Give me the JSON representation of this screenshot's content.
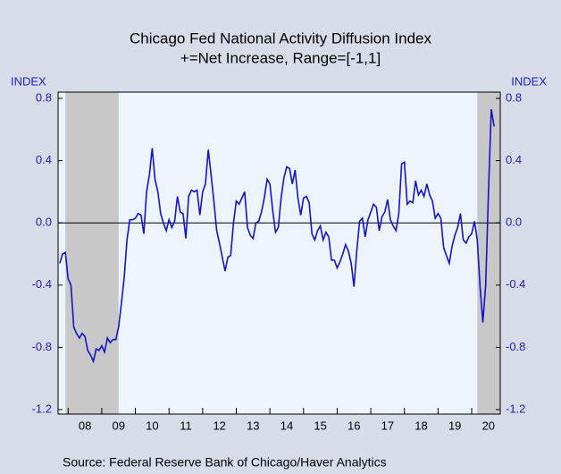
{
  "chart_data": {
    "type": "line",
    "title": "Chicago Fed National Activity Diffusion Index",
    "subtitle": "+=Net Increase, Range=[-1,1]",
    "y_label_left": "INDEX",
    "y_label_right": "INDEX",
    "source": "Source:  Federal Reserve Bank of Chicago/Haver Analytics",
    "x": [
      2007.75,
      2007.833,
      2007.917,
      2008.0,
      2008.083,
      2008.167,
      2008.25,
      2008.333,
      2008.417,
      2008.5,
      2008.583,
      2008.667,
      2008.75,
      2008.833,
      2008.917,
      2009.0,
      2009.083,
      2009.167,
      2009.25,
      2009.333,
      2009.417,
      2009.5,
      2009.583,
      2009.667,
      2009.75,
      2009.833,
      2009.917,
      2010.0,
      2010.083,
      2010.167,
      2010.25,
      2010.333,
      2010.417,
      2010.5,
      2010.583,
      2010.667,
      2010.75,
      2010.833,
      2010.917,
      2011.0,
      2011.083,
      2011.167,
      2011.25,
      2011.333,
      2011.417,
      2011.5,
      2011.583,
      2011.667,
      2011.75,
      2011.833,
      2011.917,
      2012.0,
      2012.083,
      2012.167,
      2012.25,
      2012.333,
      2012.417,
      2012.5,
      2012.583,
      2012.667,
      2012.75,
      2012.833,
      2012.917,
      2013.0,
      2013.083,
      2013.167,
      2013.25,
      2013.333,
      2013.417,
      2013.5,
      2013.583,
      2013.667,
      2013.75,
      2013.833,
      2013.917,
      2014.0,
      2014.083,
      2014.167,
      2014.25,
      2014.333,
      2014.417,
      2014.5,
      2014.583,
      2014.667,
      2014.75,
      2014.833,
      2014.917,
      2015.0,
      2015.083,
      2015.167,
      2015.25,
      2015.333,
      2015.417,
      2015.5,
      2015.583,
      2015.667,
      2015.75,
      2015.833,
      2015.917,
      2016.0,
      2016.083,
      2016.167,
      2016.25,
      2016.333,
      2016.417,
      2016.5,
      2016.583,
      2016.667,
      2016.75,
      2016.833,
      2016.917,
      2017.0,
      2017.083,
      2017.167,
      2017.25,
      2017.333,
      2017.417,
      2017.5,
      2017.583,
      2017.667,
      2017.75,
      2017.833,
      2017.917,
      2018.0,
      2018.083,
      2018.167,
      2018.25,
      2018.333,
      2018.417,
      2018.5,
      2018.583,
      2018.667,
      2018.75,
      2018.833,
      2018.917,
      2019.0,
      2019.083,
      2019.167,
      2019.25,
      2019.333,
      2019.417,
      2019.5,
      2019.583,
      2019.667,
      2019.75,
      2019.833,
      2019.917,
      2020.0,
      2020.083,
      2020.167,
      2020.25,
      2020.333,
      2020.417,
      2020.5,
      2020.583,
      2020.667
    ],
    "series": [
      {
        "color": "#1414c8",
        "values": [
          -0.26,
          -0.2,
          -0.19,
          -0.36,
          -0.4,
          -0.67,
          -0.71,
          -0.74,
          -0.71,
          -0.73,
          -0.82,
          -0.85,
          -0.89,
          -0.81,
          -0.82,
          -0.79,
          -0.83,
          -0.74,
          -0.77,
          -0.75,
          -0.75,
          -0.67,
          -0.52,
          -0.35,
          -0.11,
          0.02,
          0.02,
          0.03,
          0.06,
          0.05,
          -0.07,
          0.2,
          0.31,
          0.48,
          0.28,
          0.2,
          0.06,
          0,
          -0.05,
          0.02,
          -0.03,
          0.01,
          0.17,
          0.07,
          0.06,
          -0.1,
          0.17,
          0.21,
          0.2,
          0.21,
          0.05,
          0.2,
          0.25,
          0.47,
          0.31,
          0.14,
          -0.05,
          -0.13,
          -0.22,
          -0.31,
          -0.22,
          -0.21,
          0,
          0.14,
          0.12,
          0.16,
          0.2,
          -0.03,
          -0.08,
          -0.1,
          0,
          0.01,
          0.07,
          0.16,
          0.28,
          0.25,
          0.08,
          -0.06,
          -0.03,
          0.16,
          0.29,
          0.36,
          0.35,
          0.25,
          0.34,
          0.16,
          0.05,
          0.16,
          0.17,
          0.13,
          -0.07,
          -0.11,
          -0.05,
          -0.02,
          -0.11,
          -0.06,
          -0.09,
          -0.24,
          -0.24,
          -0.29,
          -0.25,
          -0.2,
          -0.14,
          -0.18,
          -0.26,
          -0.41,
          -0.18,
          0.01,
          0.03,
          -0.09,
          0.02,
          0.07,
          0.12,
          0.1,
          -0.05,
          0.04,
          0.07,
          0.15,
          0.02,
          -0.02,
          -0.05,
          0.06,
          0.38,
          0.39,
          0.12,
          0.14,
          0.13,
          0.27,
          0.18,
          0.21,
          0.17,
          0.25,
          0.18,
          0.14,
          0.03,
          0.06,
          0.03,
          -0.16,
          -0.21,
          -0.26,
          -0.15,
          -0.08,
          -0.03,
          0.06,
          -0.11,
          -0.13,
          -0.09,
          -0.07,
          0.01,
          -0.11,
          -0.41,
          -0.64,
          -0.4,
          0.2,
          0.73,
          0.62
        ]
      }
    ],
    "xlim": [
      2007.7,
      2020.85
    ],
    "xticks": [
      {
        "value": 2008.5,
        "label": "08"
      },
      {
        "value": 2009.5,
        "label": "09"
      },
      {
        "value": 2010.5,
        "label": "10"
      },
      {
        "value": 2011.5,
        "label": "11"
      },
      {
        "value": 2012.5,
        "label": "12"
      },
      {
        "value": 2013.5,
        "label": "13"
      },
      {
        "value": 2014.5,
        "label": "14"
      },
      {
        "value": 2015.5,
        "label": "15"
      },
      {
        "value": 2016.5,
        "label": "16"
      },
      {
        "value": 2017.5,
        "label": "17"
      },
      {
        "value": 2018.5,
        "label": "18"
      },
      {
        "value": 2019.5,
        "label": "19"
      },
      {
        "value": 2020.5,
        "label": "20"
      }
    ],
    "xminor": [
      2008,
      2009,
      2010,
      2011,
      2012,
      2013,
      2014,
      2015,
      2016,
      2017,
      2018,
      2019,
      2020
    ],
    "ylim": [
      -1.2,
      0.8
    ],
    "yticks": [
      0.8,
      0.4,
      {
        "value": 0,
        "label": "0.0"
      },
      -0.4,
      -0.8,
      -1.2
    ],
    "reference_line": 0,
    "shaded": [
      [
        2007.917,
        2009.5
      ],
      [
        2020.167,
        2020.85
      ]
    ],
    "shade_color": "#c8c8c8"
  }
}
